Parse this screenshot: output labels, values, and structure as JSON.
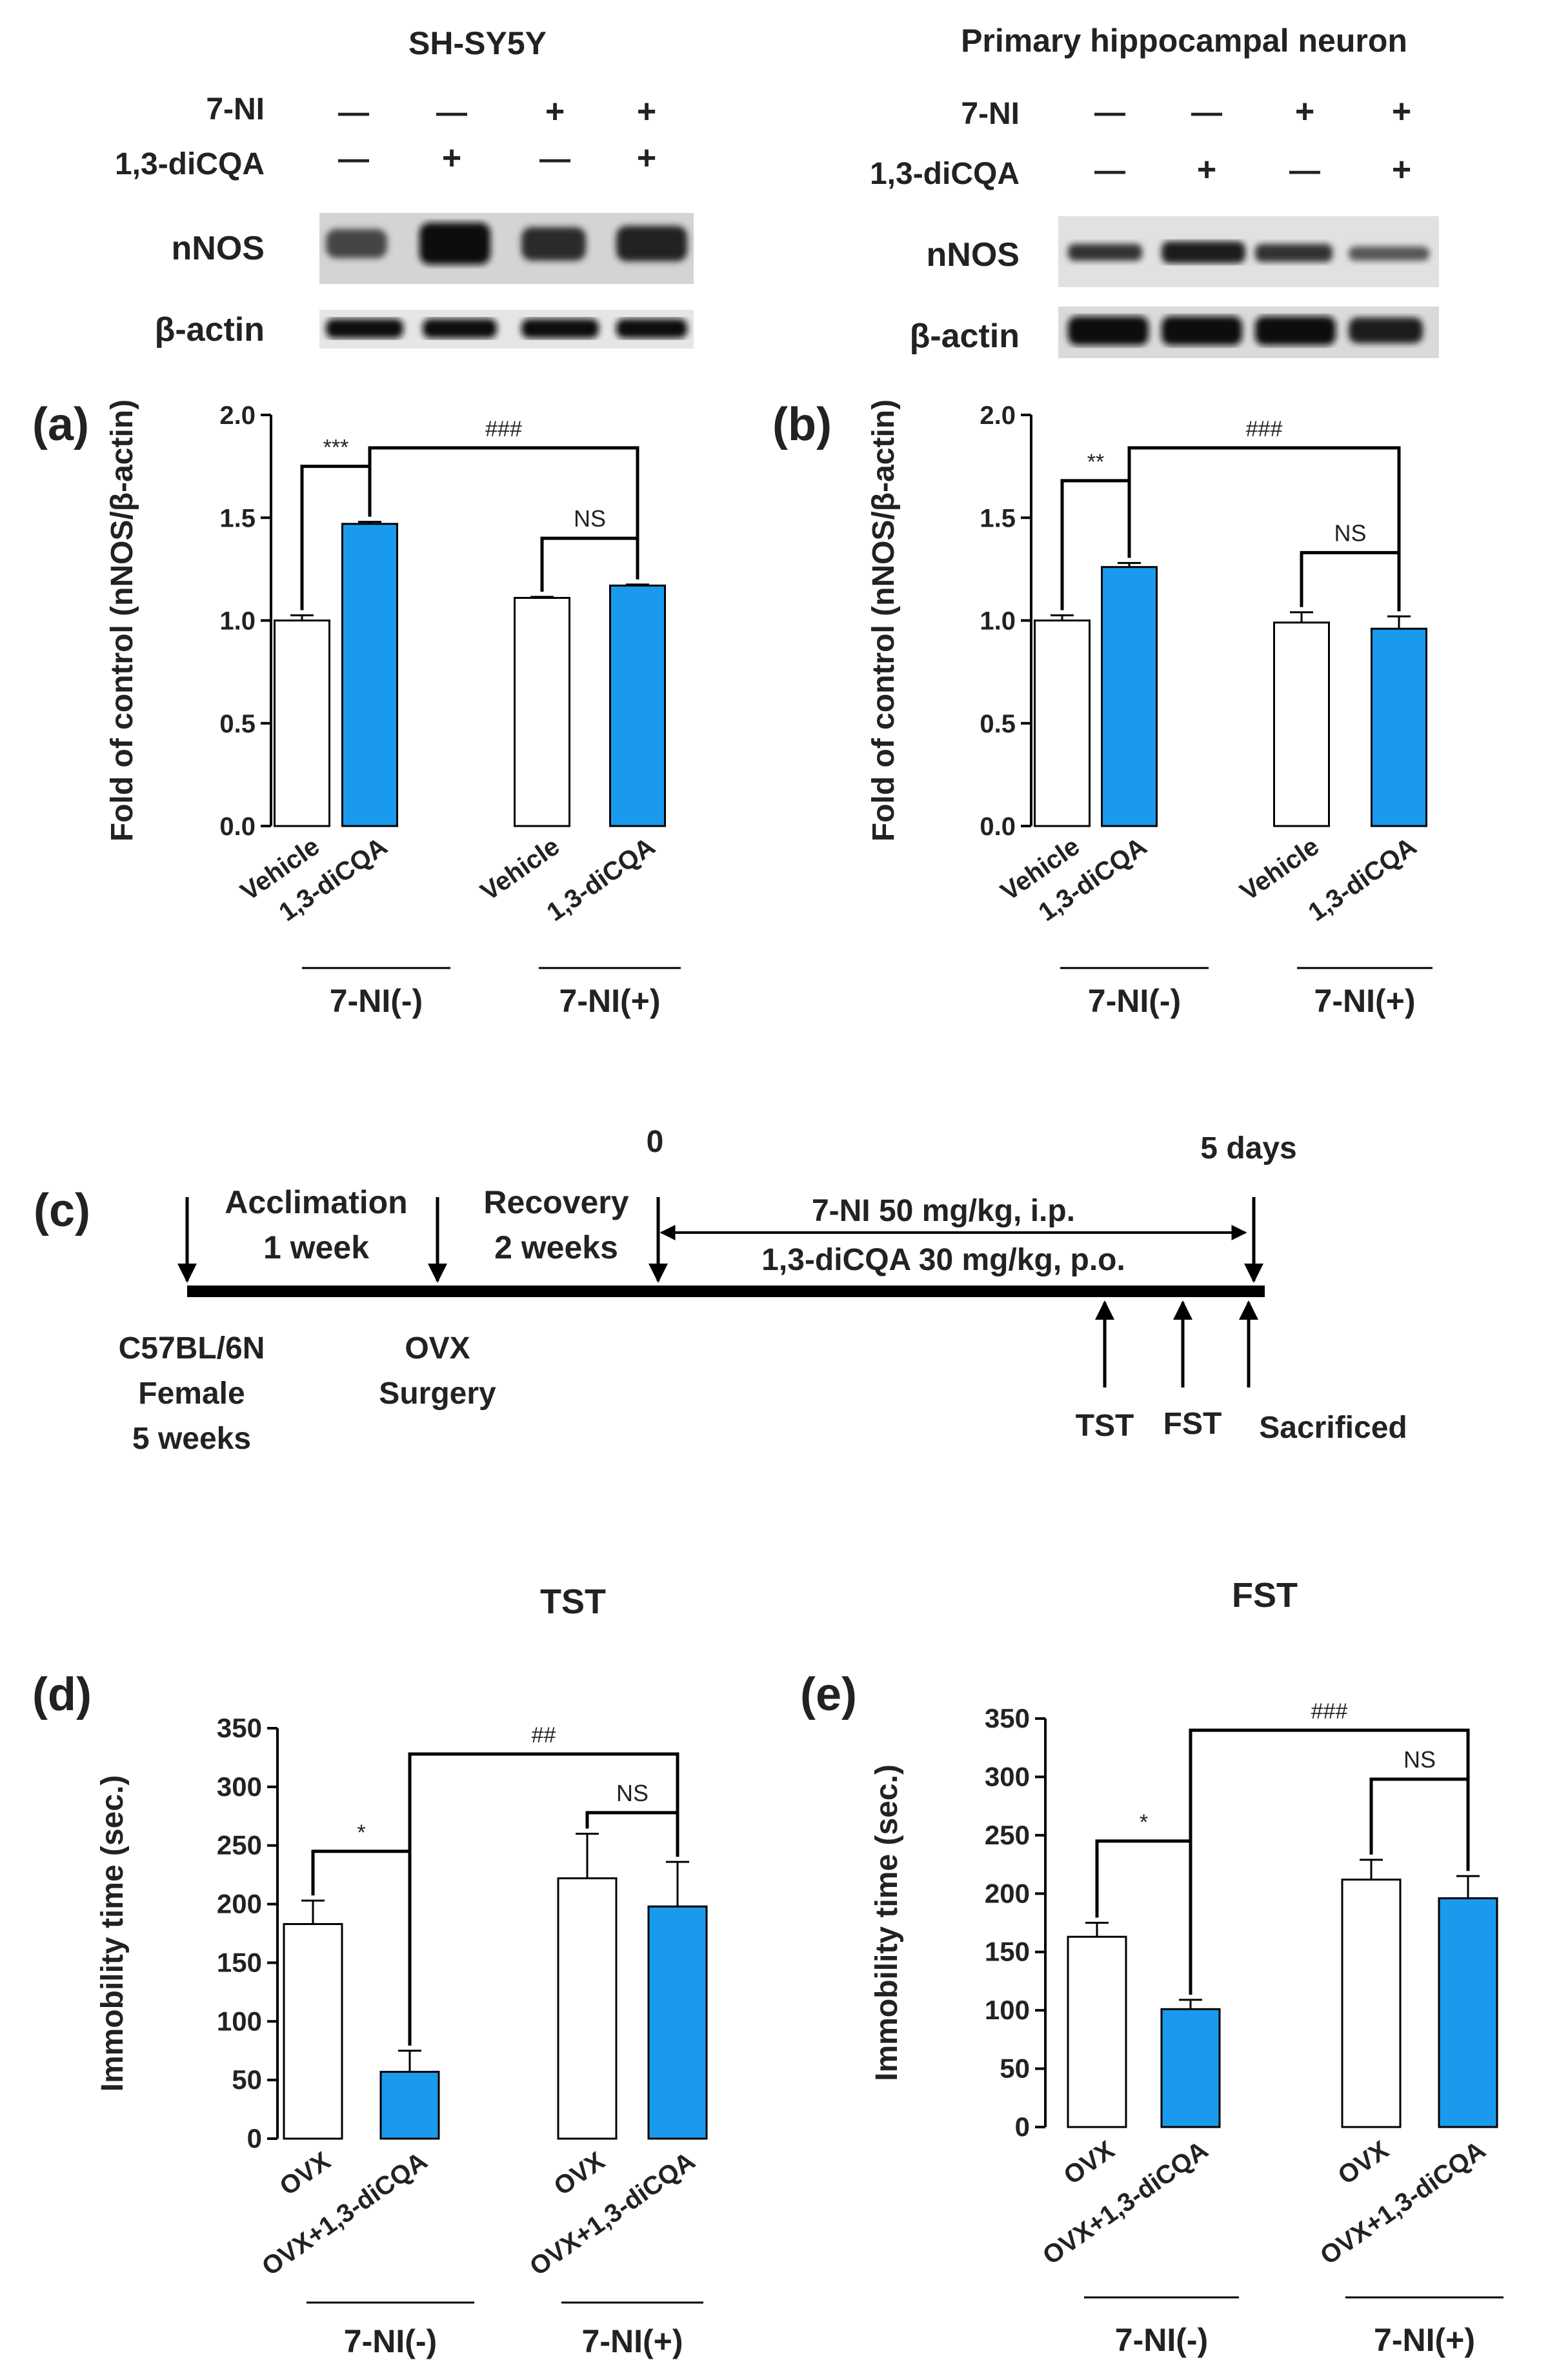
{
  "blots": [
    {
      "title": "SH-SY5Y",
      "rows": [
        {
          "label": "7-NI",
          "signs": [
            "—",
            "—",
            "+",
            "+"
          ]
        },
        {
          "label": "1,3-diCQA",
          "signs": [
            "—",
            "+",
            "—",
            "+"
          ]
        }
      ],
      "bands": [
        "nNOS",
        "β-actin"
      ]
    },
    {
      "title": "Primary hippocampal neuron",
      "rows": [
        {
          "label": "7-NI",
          "signs": [
            "—",
            "—",
            "+",
            "+"
          ]
        },
        {
          "label": "1,3-diCQA",
          "signs": [
            "—",
            "+",
            "—",
            "+"
          ]
        }
      ],
      "bands": [
        "nNOS",
        "β-actin"
      ]
    }
  ],
  "timeline": {
    "panel": "(c)",
    "zero_label": "0",
    "end_label": "5 days",
    "phases": [
      {
        "line1": "Acclimation",
        "line2": "1 week"
      },
      {
        "line1": "Recovery",
        "line2": "2 weeks"
      }
    ],
    "treatment": {
      "line1": "7-NI 50 mg/kg, i.p.",
      "line2": "1,3-diCQA 30 mg/kg, p.o."
    },
    "start_labels": [
      {
        "lines": [
          "C57BL/6N",
          "Female",
          "5 weeks"
        ]
      },
      {
        "lines": [
          "OVX",
          "Surgery"
        ]
      }
    ],
    "test_labels": [
      "TST",
      "FST",
      "Sacrificed"
    ]
  },
  "colors": {
    "treated": "#1a9aec",
    "vehicle": "#ffffff",
    "line": "#000000",
    "band": "#111111"
  },
  "chart_data": [
    {
      "panel": "(a)",
      "type": "bar",
      "title": "",
      "ylabel": "Fold of control (nNOS/β-actin)",
      "ylim": [
        0,
        2.0
      ],
      "yticks": [
        "0.0",
        "0.5",
        "1.0",
        "1.5",
        "2.0"
      ],
      "ytick_values": [
        0,
        0.5,
        1.0,
        1.5,
        2.0
      ],
      "categories": [
        "Vehicle",
        "1,3-diCQA",
        "Vehicle",
        "1,3-diCQA"
      ],
      "values": [
        1.0,
        1.47,
        1.11,
        1.17
      ],
      "errors": [
        0.025,
        0.01,
        0.005,
        0.005
      ],
      "groups": [
        "7-NI(-)",
        "7-NI(+)"
      ],
      "annotations": [
        {
          "text": "***",
          "from": 0,
          "to": 1,
          "level": 1.75
        },
        {
          "text": "NS",
          "from": 2,
          "to": 3,
          "level": 1.4
        },
        {
          "text": "###",
          "from": 1,
          "to": 3,
          "level": 1.84
        }
      ]
    },
    {
      "panel": "(b)",
      "type": "bar",
      "title": "",
      "ylabel": "Fold of control (nNOS/β-actin)",
      "ylim": [
        0,
        2.0
      ],
      "yticks": [
        "0.0",
        "0.5",
        "1.0",
        "1.5",
        "2.0"
      ],
      "ytick_values": [
        0,
        0.5,
        1.0,
        1.5,
        2.0
      ],
      "categories": [
        "Vehicle",
        "1,3-diCQA",
        "Vehicle",
        "1,3-diCQA"
      ],
      "values": [
        1.0,
        1.26,
        0.99,
        0.96
      ],
      "errors": [
        0.025,
        0.02,
        0.05,
        0.06
      ],
      "groups": [
        "7-NI(-)",
        "7-NI(+)"
      ],
      "annotations": [
        {
          "text": "**",
          "from": 0,
          "to": 1,
          "level": 1.68
        },
        {
          "text": "NS",
          "from": 2,
          "to": 3,
          "level": 1.33
        },
        {
          "text": "###",
          "from": 1,
          "to": 3,
          "level": 1.84
        }
      ]
    },
    {
      "panel": "(d)",
      "type": "bar",
      "title": "TST",
      "ylabel": "Immobility time (sec.)",
      "ylim": [
        0,
        350
      ],
      "yticks": [
        "0",
        "50",
        "100",
        "150",
        "200",
        "250",
        "300",
        "350"
      ],
      "ytick_values": [
        0,
        50,
        100,
        150,
        200,
        250,
        300,
        350
      ],
      "categories": [
        "OVX",
        "OVX+1,3-diCQA",
        "OVX",
        "OVX+1,3-diCQA"
      ],
      "values": [
        183,
        57,
        222,
        198
      ],
      "errors": [
        20,
        18,
        38,
        38
      ],
      "groups": [
        "7-NI(-)",
        "7-NI(+)"
      ],
      "annotations": [
        {
          "text": "*",
          "from": 0,
          "to": 1,
          "level": 245
        },
        {
          "text": "NS",
          "from": 2,
          "to": 3,
          "level": 278
        },
        {
          "text": "##",
          "from": 1,
          "to": 3,
          "level": 328
        }
      ]
    },
    {
      "panel": "(e)",
      "type": "bar",
      "title": "FST",
      "ylabel": "Immobility time (sec.)",
      "ylim": [
        0,
        350
      ],
      "yticks": [
        "0",
        "50",
        "100",
        "150",
        "200",
        "250",
        "300",
        "350"
      ],
      "ytick_values": [
        0,
        50,
        100,
        150,
        200,
        250,
        300,
        350
      ],
      "categories": [
        "OVX",
        "OVX+1,3-diCQA",
        "OVX",
        "OVX+1,3-diCQA"
      ],
      "values": [
        163,
        101,
        212,
        196
      ],
      "errors": [
        12,
        8,
        17,
        19
      ],
      "groups": [
        "7-NI(-)",
        "7-NI(+)"
      ],
      "annotations": [
        {
          "text": "*",
          "from": 0,
          "to": 1,
          "level": 245
        },
        {
          "text": "NS",
          "from": 2,
          "to": 3,
          "level": 298
        },
        {
          "text": "###",
          "from": 1,
          "to": 3,
          "level": 340
        }
      ]
    }
  ]
}
